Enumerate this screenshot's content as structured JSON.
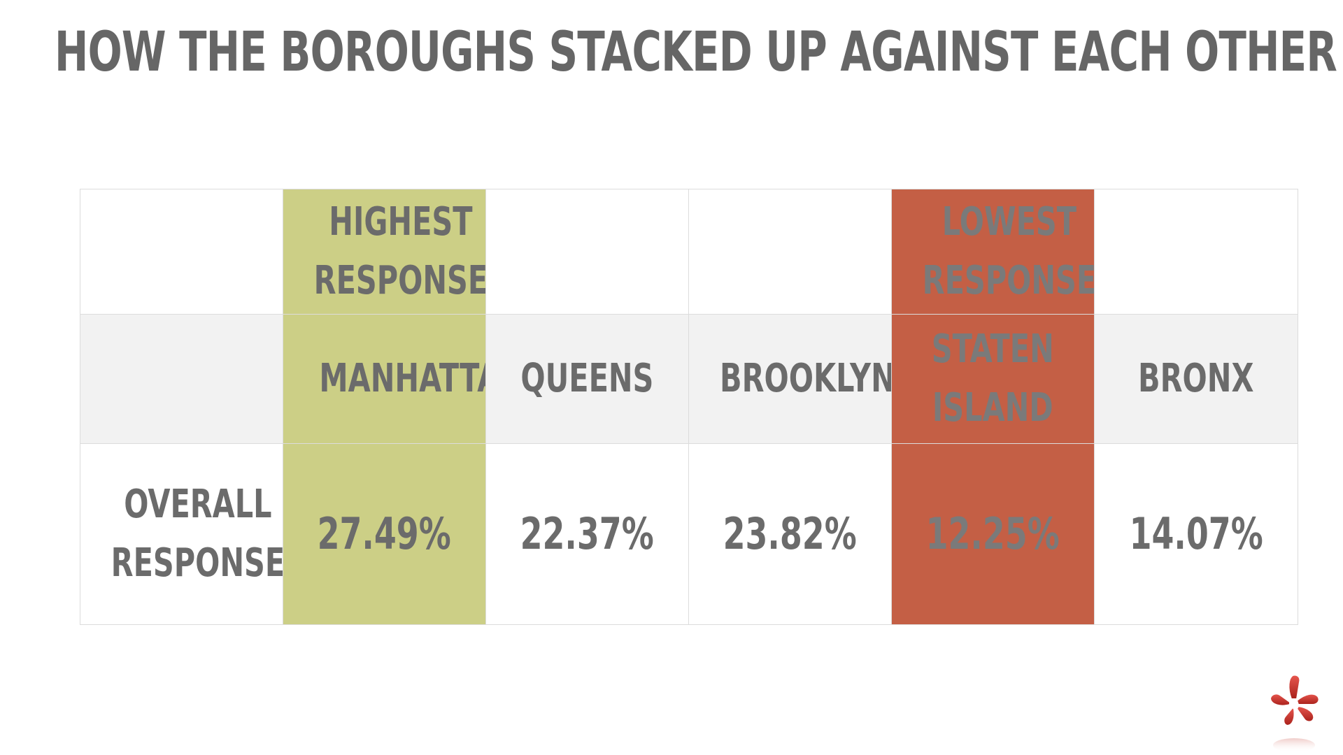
{
  "title": "HOW THE BOROUGHS STACKED UP AGAINST EACH OTHER",
  "header_row": {
    "highest_label": [
      "HIGHEST",
      "RESPONSE"
    ],
    "lowest_label": [
      "LOWEST",
      "RESPONSE"
    ]
  },
  "boroughs": [
    "MANHATTAN",
    "QUEENS",
    "BROOKLYN",
    [
      "STATEN",
      "ISLAND"
    ],
    "BRONX"
  ],
  "row_label": [
    "OVERALL",
    "RESPONSE"
  ],
  "values": [
    "27.49%",
    "22.37%",
    "23.82%",
    "12.25%",
    "14.07%"
  ],
  "colors": {
    "highest": "#cccf86",
    "lowest": "#c45f45",
    "band": "#f2f2f2",
    "text": "#6b6b6b"
  },
  "logo_icon": "yelp-burst-icon"
}
